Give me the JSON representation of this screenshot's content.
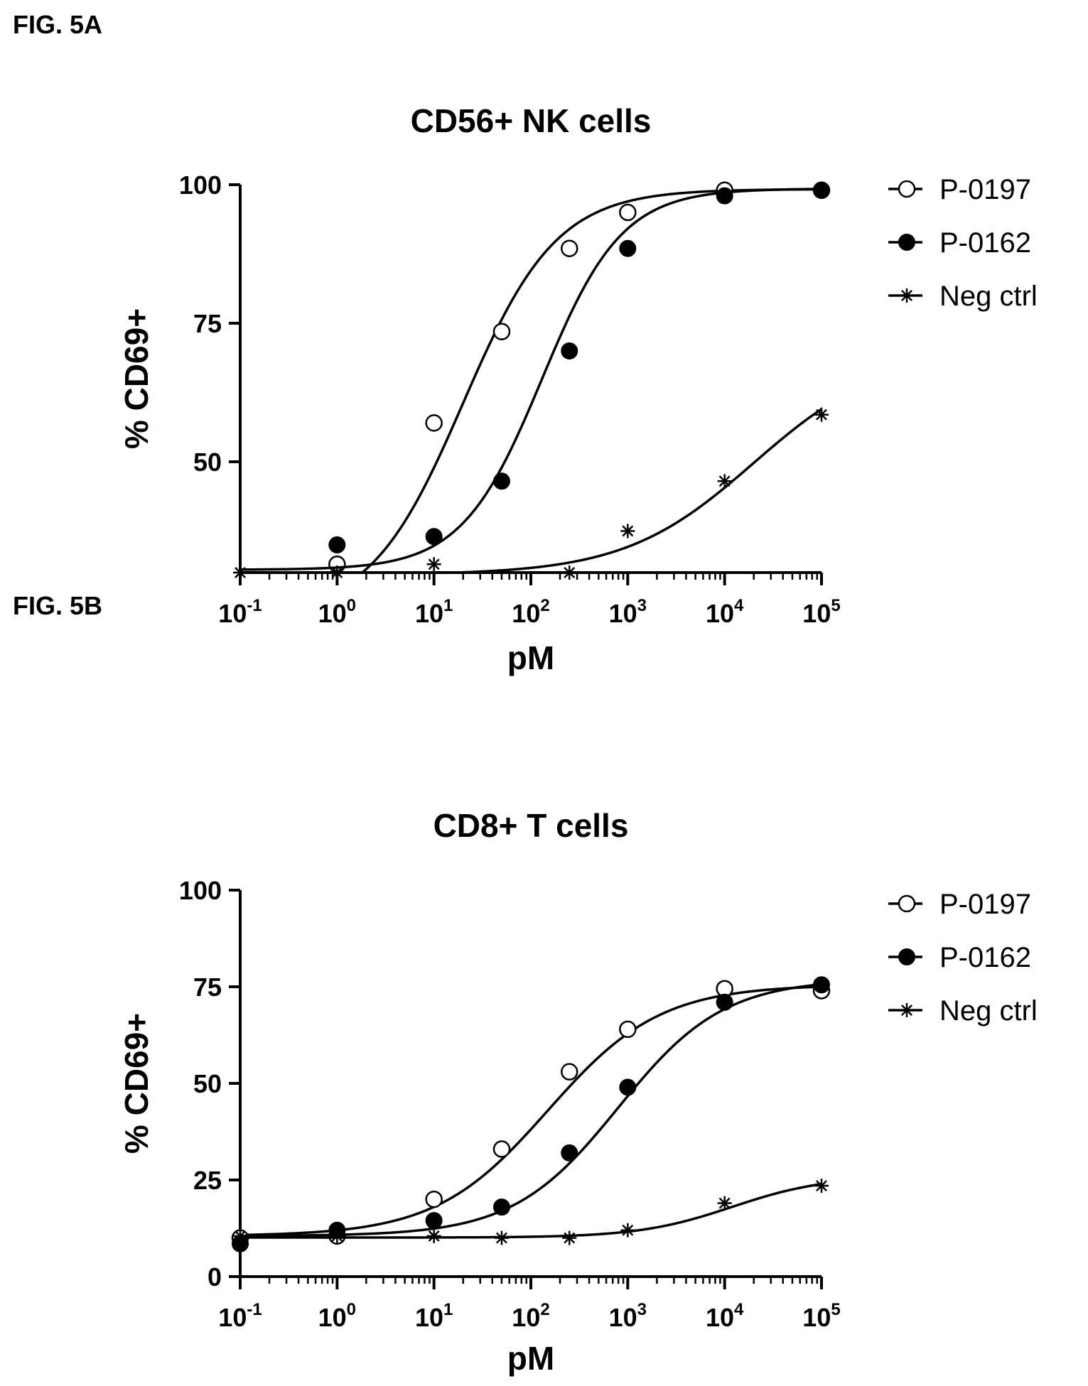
{
  "figures": [
    {
      "label": "FIG. 5A"
    },
    {
      "label": "FIG. 5B"
    }
  ],
  "chart_data": [
    {
      "type": "scatter",
      "title": "CD56+ NK cells",
      "xlabel": "pM",
      "ylabel": "% CD69+",
      "x_scale": "log10",
      "xlim": [
        0.1,
        100000
      ],
      "ylim": [
        30,
        100
      ],
      "x_ticks": [
        0.1,
        1,
        10,
        100,
        1000,
        10000,
        100000
      ],
      "x_tick_labels": [
        {
          "base": "10",
          "exp": "-1"
        },
        {
          "base": "10",
          "exp": "0"
        },
        {
          "base": "10",
          "exp": "1"
        },
        {
          "base": "10",
          "exp": "2"
        },
        {
          "base": "10",
          "exp": "3"
        },
        {
          "base": "10",
          "exp": "4"
        },
        {
          "base": "10",
          "exp": "5"
        }
      ],
      "y_ticks": [
        50,
        75,
        100
      ],
      "y_tick_labels": [
        "50",
        "75",
        "100"
      ],
      "legend_position": "right",
      "grid": false,
      "series": [
        {
          "name": "P-0197",
          "marker": "open-circle",
          "points": [
            [
              1,
              31.5
            ],
            [
              10,
              57
            ],
            [
              50,
              73.5
            ],
            [
              250,
              88.5
            ],
            [
              1000,
              95
            ],
            [
              10000,
              99
            ],
            [
              100000,
              99
            ]
          ],
          "fit": {
            "bottom": 22,
            "top": 99.2,
            "ec50": 20,
            "hill": 0.9
          }
        },
        {
          "name": "P-0162",
          "marker": "filled-circle",
          "points": [
            [
              1,
              35
            ],
            [
              10,
              36.5
            ],
            [
              50,
              46.5
            ],
            [
              250,
              70
            ],
            [
              1000,
              88.5
            ],
            [
              10000,
              98
            ],
            [
              100000,
              99
            ]
          ],
          "fit": {
            "bottom": 30.5,
            "top": 99.3,
            "ec50": 130,
            "hill": 1.05
          }
        },
        {
          "name": "Neg ctrl",
          "marker": "asterisk",
          "points": [
            [
              0.1,
              30
            ],
            [
              1,
              30
            ],
            [
              10,
              31.5
            ],
            [
              250,
              30
            ],
            [
              1000,
              37.5
            ],
            [
              10000,
              46.5
            ],
            [
              100000,
              58.5
            ]
          ],
          "fit": {
            "bottom": 29.6,
            "top": 70,
            "ec50": 20000,
            "hill": 0.65
          }
        }
      ]
    },
    {
      "type": "scatter",
      "title": "CD8+ T cells",
      "xlabel": "pM",
      "ylabel": "% CD69+",
      "x_scale": "log10",
      "xlim": [
        0.1,
        100000
      ],
      "ylim": [
        0,
        100
      ],
      "x_ticks": [
        0.1,
        1,
        10,
        100,
        1000,
        10000,
        100000
      ],
      "x_tick_labels": [
        {
          "base": "10",
          "exp": "-1"
        },
        {
          "base": "10",
          "exp": "0"
        },
        {
          "base": "10",
          "exp": "1"
        },
        {
          "base": "10",
          "exp": "2"
        },
        {
          "base": "10",
          "exp": "3"
        },
        {
          "base": "10",
          "exp": "4"
        },
        {
          "base": "10",
          "exp": "5"
        }
      ],
      "y_ticks": [
        0,
        25,
        50,
        75,
        100
      ],
      "y_tick_labels": [
        "0",
        "25",
        "50",
        "75",
        "100"
      ],
      "legend_position": "right",
      "grid": false,
      "series": [
        {
          "name": "P-0197",
          "marker": "open-circle",
          "points": [
            [
              0.1,
              10
            ],
            [
              1,
              10.5
            ],
            [
              10,
              20
            ],
            [
              50,
              33
            ],
            [
              250,
              53
            ],
            [
              1000,
              64
            ],
            [
              10000,
              74.5
            ],
            [
              100000,
              74
            ]
          ],
          "fit": {
            "bottom": 10.5,
            "top": 75.5,
            "ec50": 150,
            "hill": 0.75
          }
        },
        {
          "name": "P-0162",
          "marker": "filled-circle",
          "points": [
            [
              0.1,
              8.5
            ],
            [
              1,
              12
            ],
            [
              10,
              14.5
            ],
            [
              50,
              18
            ],
            [
              250,
              32
            ],
            [
              1000,
              49
            ],
            [
              10000,
              71
            ],
            [
              100000,
              75.5
            ]
          ],
          "fit": {
            "bottom": 10.5,
            "top": 77,
            "ec50": 800,
            "hill": 0.8
          }
        },
        {
          "name": "Neg ctrl",
          "marker": "asterisk",
          "points": [
            [
              0.1,
              10.5
            ],
            [
              1,
              10.5
            ],
            [
              10,
              10.5
            ],
            [
              50,
              10
            ],
            [
              250,
              10
            ],
            [
              1000,
              12
            ],
            [
              10000,
              19
            ],
            [
              100000,
              23.5
            ]
          ],
          "fit": {
            "bottom": 10.1,
            "top": 26,
            "ec50": 12000,
            "hill": 0.9
          }
        }
      ]
    }
  ]
}
